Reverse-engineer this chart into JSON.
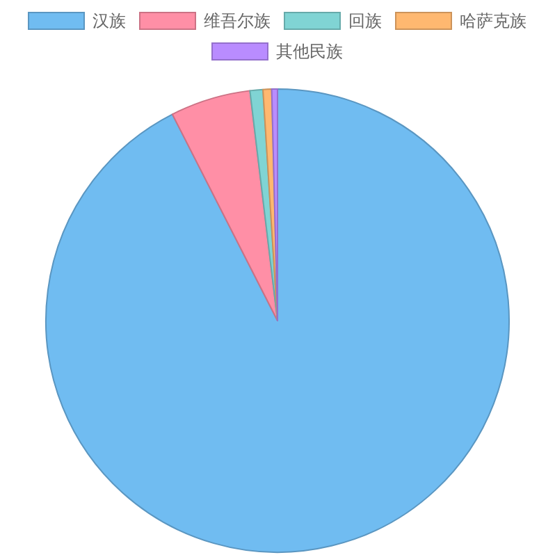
{
  "chart_data": {
    "type": "pie",
    "legend": "top",
    "categories": [
      "汉族",
      "维吾尔族",
      "回族",
      "哈萨克族",
      "其他民族"
    ],
    "values": [
      92.5,
      5.6,
      0.9,
      0.6,
      0.4
    ],
    "colors": [
      "#70bcf1",
      "#ff8fa6",
      "#80d4d4",
      "#ffb870",
      "#b98cff"
    ]
  }
}
